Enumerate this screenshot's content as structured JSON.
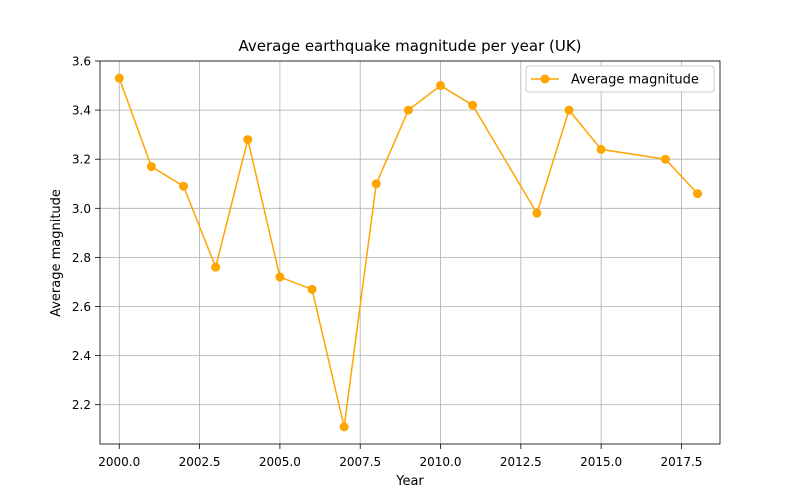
{
  "chart_data": {
    "type": "line",
    "title": "Average earthquake magnitude per year (UK)",
    "xlabel": "Year",
    "ylabel": "Average magnitude",
    "xlim": [
      1999.4,
      2018.7
    ],
    "ylim": [
      2.04,
      3.6
    ],
    "x_ticks": [
      2000.0,
      2002.5,
      2005.0,
      2007.5,
      2010.0,
      2012.5,
      2015.0,
      2017.5
    ],
    "x_tick_labels": [
      "2000.0",
      "2002.5",
      "2005.0",
      "2007.5",
      "2010.0",
      "2012.5",
      "2015.0",
      "2017.5"
    ],
    "y_ticks": [
      2.2,
      2.4,
      2.6,
      2.8,
      3.0,
      3.2,
      3.4,
      3.6
    ],
    "y_tick_labels": [
      "2.2",
      "2.4",
      "2.6",
      "2.8",
      "3.0",
      "3.2",
      "3.4",
      "3.6"
    ],
    "grid": true,
    "legend_position": "top-right",
    "series": [
      {
        "name": "Average magnitude",
        "color": "#ffa500",
        "x": [
          2000,
          2001,
          2002,
          2003,
          2004,
          2005,
          2006,
          2007,
          2008,
          2009,
          2010,
          2011,
          2013,
          2014,
          2015,
          2017,
          2018
        ],
        "y": [
          3.53,
          3.17,
          3.09,
          2.76,
          3.28,
          2.72,
          2.67,
          2.11,
          3.1,
          3.4,
          3.5,
          3.42,
          2.98,
          3.4,
          3.24,
          3.2,
          3.06
        ]
      }
    ]
  }
}
